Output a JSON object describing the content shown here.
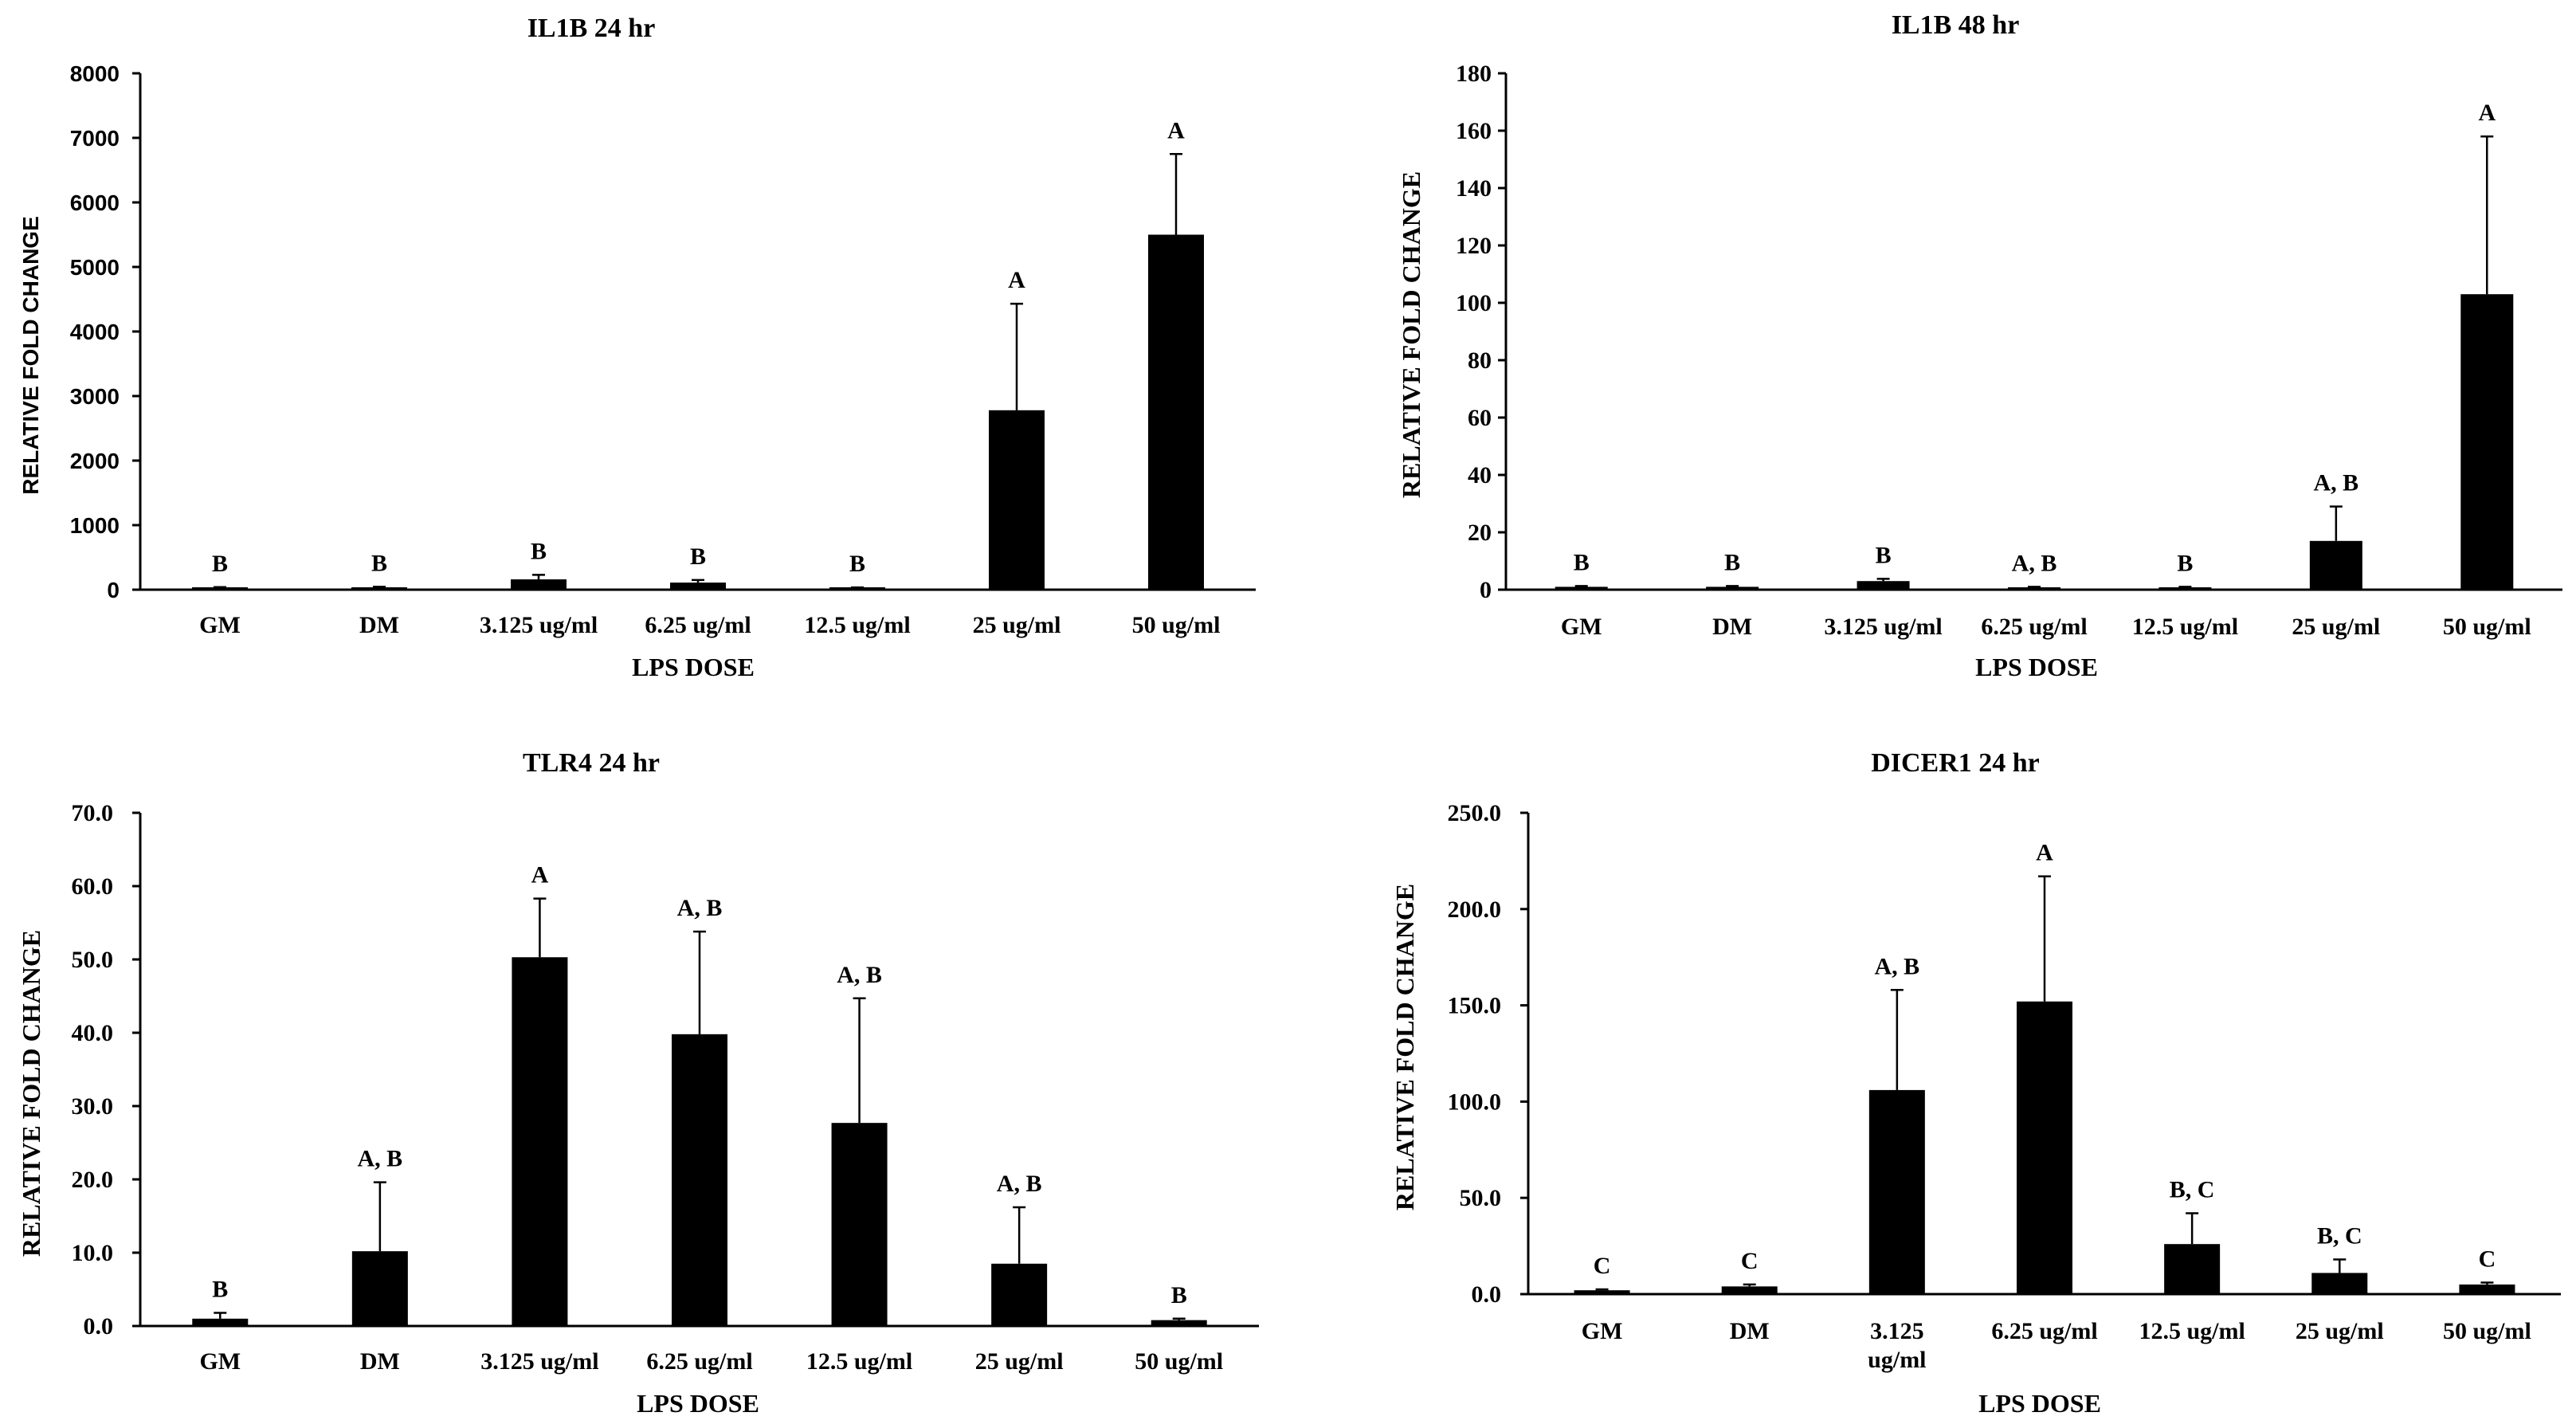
{
  "chart_data": [
    {
      "type": "bar",
      "title": "IL1B 24 hr",
      "xlabel": "LPS DOSE",
      "ylabel": "RELATIVE FOLD CHANGE",
      "categories": [
        "GM",
        "DM",
        "3.125 ug/ml",
        "6.25 ug/ml",
        "12.5 ug/ml",
        "25 ug/ml",
        "50 ug/ml"
      ],
      "values": [
        30,
        35,
        160,
        110,
        25,
        2780,
        5500
      ],
      "errors": [
        10,
        10,
        70,
        40,
        10,
        1650,
        1250
      ],
      "annotations": [
        "B",
        "B",
        "B",
        "B",
        "B",
        "A",
        "A"
      ],
      "ylim": [
        0,
        8000
      ],
      "yticks": [
        "0",
        "1000",
        "2000",
        "3000",
        "4000",
        "5000",
        "6000",
        "7000",
        "8000"
      ]
    },
    {
      "type": "bar",
      "title": "IL1B 48 hr",
      "xlabel": "LPS DOSE",
      "ylabel": "RELATIVE FOLD CHANGE",
      "categories": [
        "GM",
        "DM",
        "3.125 ug/ml",
        "6.25 ug/ml",
        "12.5 ug/ml",
        "25 ug/ml",
        "50 ug/ml"
      ],
      "values": [
        1,
        1,
        3,
        0.8,
        0.8,
        17,
        103
      ],
      "errors": [
        0.3,
        0.3,
        0.8,
        0.2,
        0.2,
        12,
        55
      ],
      "annotations": [
        "B",
        "B",
        "B",
        "A, B",
        "B",
        "A, B",
        "A"
      ],
      "ylim": [
        0,
        180
      ],
      "yticks": [
        "0",
        "20",
        "40",
        "60",
        "80",
        "100",
        "120",
        "140",
        "160",
        "180"
      ]
    },
    {
      "type": "bar",
      "title": "TLR4 24 hr",
      "xlabel": "LPS DOSE",
      "ylabel": "RELATIVE FOLD CHANGE",
      "categories": [
        "GM",
        "DM",
        "3.125 ug/ml",
        "6.25 ug/ml",
        "12.5 ug/ml",
        "25 ug/ml",
        "50 ug/ml"
      ],
      "values": [
        1,
        10.2,
        50.3,
        39.8,
        27.7,
        8.5,
        0.8
      ],
      "errors": [
        0.8,
        9.4,
        8,
        14,
        17,
        7.7,
        0.2
      ],
      "annotations": [
        "B",
        "A, B",
        "A",
        "A, B",
        "A, B",
        "A, B",
        "B"
      ],
      "ylim": [
        0,
        70
      ],
      "yticks": [
        "0.0",
        "10.0",
        "20.0",
        "30.0",
        "40.0",
        "50.0",
        "60.0",
        "70.0"
      ]
    },
    {
      "type": "bar",
      "title": "DICER1 24 hr",
      "xlabel": "LPS DOSE",
      "ylabel": "RELATIVE FOLD CHANGE",
      "categories": [
        "GM",
        "DM",
        "3.125 ug/ml",
        "6.25 ug/ml",
        "12.5 ug/ml",
        "25 ug/ml",
        "50 ug/ml"
      ],
      "category_lines": [
        [
          "GM"
        ],
        [
          "DM"
        ],
        [
          "3.125",
          "ug/ml"
        ],
        [
          "6.25 ug/ml"
        ],
        [
          "12.5 ug/ml"
        ],
        [
          "25 ug/ml"
        ],
        [
          "50 ug/ml"
        ]
      ],
      "values": [
        2,
        4,
        106,
        152,
        26,
        11,
        5
      ],
      "errors": [
        0.5,
        1,
        52,
        65,
        16,
        7,
        1
      ],
      "annotations": [
        "C",
        "C",
        "A, B",
        "A",
        "B, C",
        "B, C",
        "C"
      ],
      "annotation_offsets": [
        0,
        0,
        0,
        -1,
        0,
        0,
        0
      ],
      "ylim": [
        0,
        250
      ],
      "yticks": [
        "0.0",
        "50.0",
        "100.0",
        "150.0",
        "200.0",
        "250.0"
      ]
    }
  ]
}
